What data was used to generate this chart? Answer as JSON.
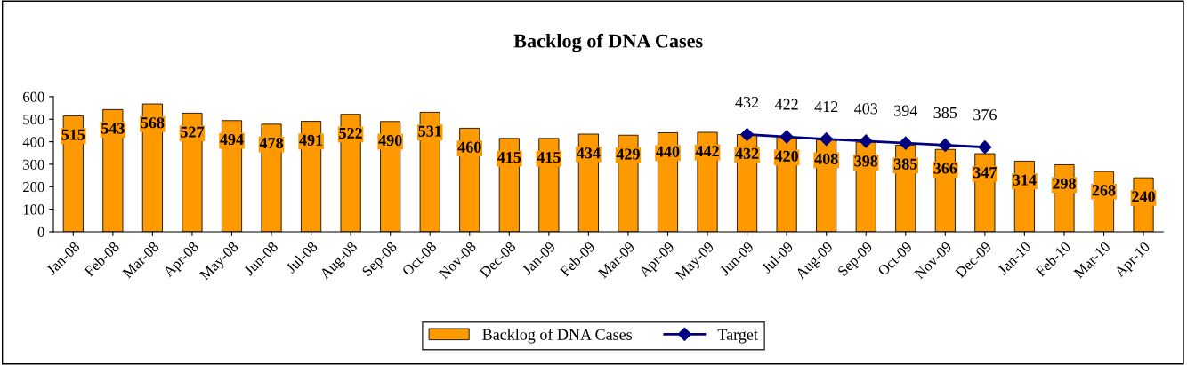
{
  "chart_data": {
    "type": "bar",
    "title": "Backlog of DNA Cases",
    "categories": [
      "Jan-08",
      "Feb-08",
      "Mar-08",
      "Apr-08",
      "May-08",
      "Jun-08",
      "Jul-08",
      "Aug-08",
      "Sep-08",
      "Oct-08",
      "Nov-08",
      "Dec-08",
      "Jan-09",
      "Feb-09",
      "Mar-09",
      "Apr-09",
      "May-09",
      "Jun-09",
      "Jul-09",
      "Aug-09",
      "Sep-09",
      "Oct-09",
      "Nov-09",
      "Dec-09",
      "Jan-10",
      "Feb-10",
      "Mar-10",
      "Apr-10"
    ],
    "series": [
      {
        "name": "Backlog of DNA Cases",
        "color": "#ff9900",
        "values": [
          515,
          543,
          568,
          527,
          494,
          478,
          491,
          522,
          490,
          531,
          460,
          415,
          415,
          434,
          429,
          440,
          442,
          432,
          420,
          408,
          398,
          385,
          366,
          347,
          314,
          298,
          268,
          240
        ]
      },
      {
        "name": "Target",
        "type": "line",
        "color": "#000080",
        "marker": "diamond",
        "values": [
          null,
          null,
          null,
          null,
          null,
          null,
          null,
          null,
          null,
          null,
          null,
          null,
          null,
          null,
          null,
          null,
          null,
          432,
          422,
          412,
          403,
          394,
          385,
          376,
          null,
          null,
          null,
          null
        ]
      }
    ],
    "ylim": [
      0,
      600
    ],
    "yticks": [
      0,
      100,
      200,
      300,
      400,
      500,
      600
    ],
    "data_labels": true,
    "legend": "bottom",
    "grid": false
  }
}
